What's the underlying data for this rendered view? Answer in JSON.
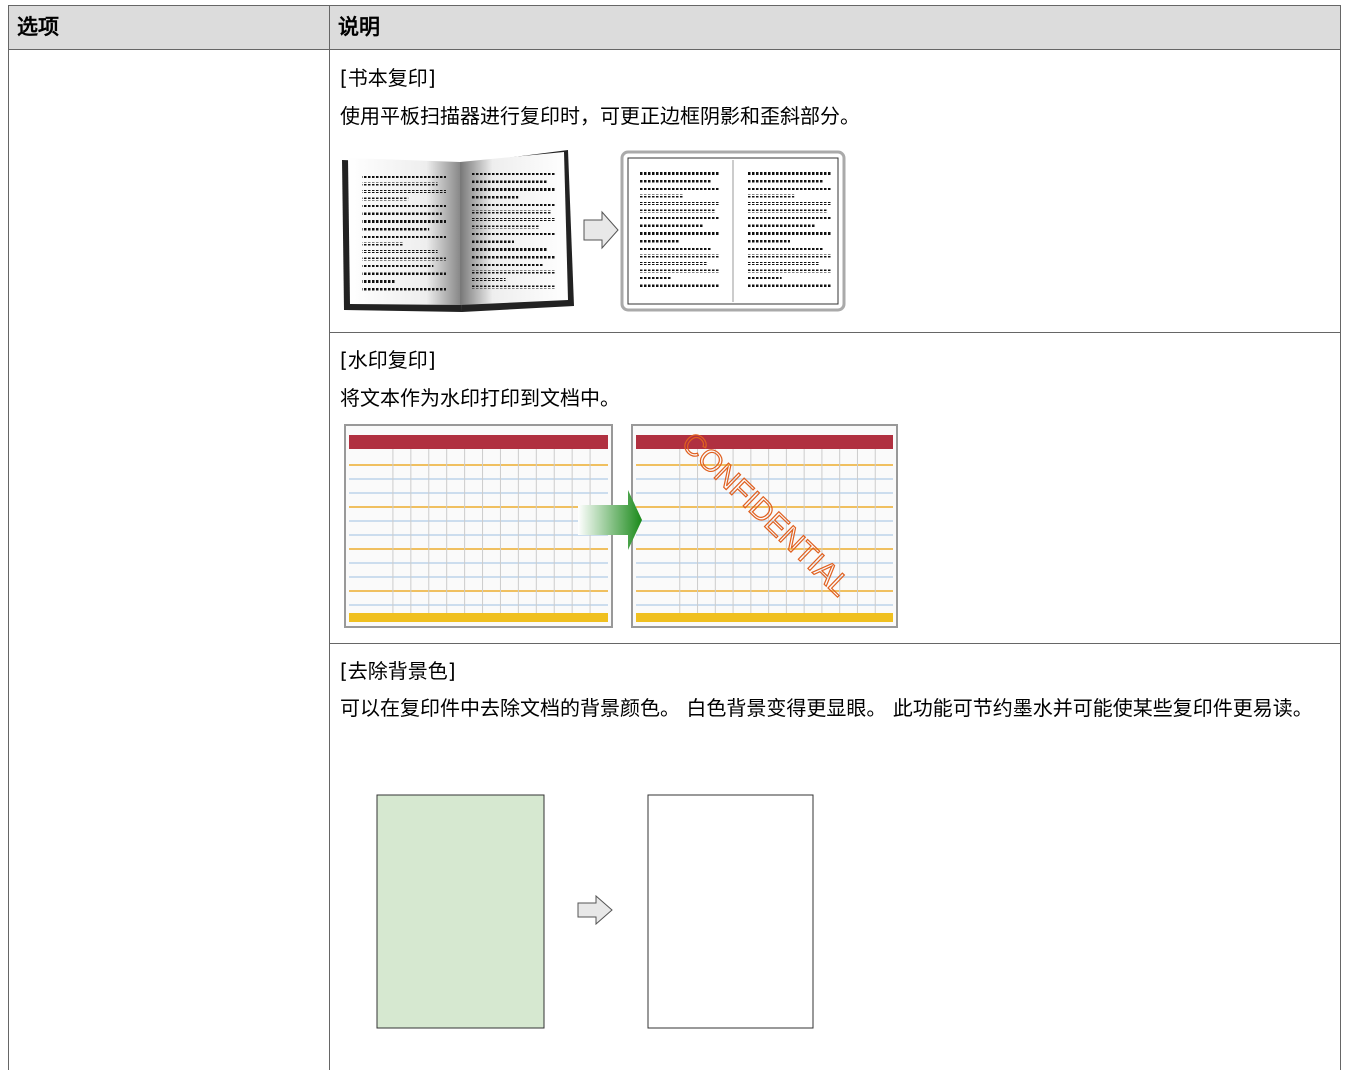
{
  "table": {
    "header": [
      "选项",
      "说明"
    ],
    "sections": [
      {
        "title": "[书本复印]",
        "description": "使用平板扫描器进行复印时，可更正边框阴影和歪斜部分。"
      },
      {
        "title": "[水印复印]",
        "description": "将文本作为水印打印到文档中。",
        "watermark": "CONFIDENTIAL"
      },
      {
        "title": "[去除背景色]",
        "description": "可以在复印件中去除文档的背景颜色。 白色背景变得更显眼。 此功能可节约墨水并可能使某些复印件更易读。"
      }
    ]
  }
}
